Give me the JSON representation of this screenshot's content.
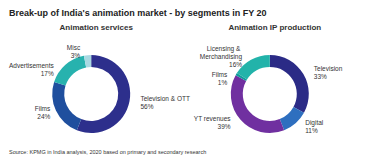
{
  "title": "Break-up of India's animation market - by segments in FY 20",
  "source": "Source: KPMG in India analysis, 2020 based on primary and secondary research",
  "chart_data": [
    {
      "type": "pie",
      "title": "Animation services",
      "categories": [
        "Television & OTT",
        "Films",
        "Advertisements",
        "Misc"
      ],
      "values": [
        56,
        24,
        17,
        3
      ],
      "value_labels": [
        "56%",
        "24%",
        "17%",
        "3%"
      ],
      "colors": [
        "#2d2f8c",
        "#1f4f9e",
        "#27b2ae",
        "#a9d9e2"
      ],
      "data_labels": true
    },
    {
      "type": "pie",
      "title": "Animation IP production",
      "categories": [
        "Television",
        "Digital",
        "YT revenues",
        "Films",
        "Licensing & Merchandising"
      ],
      "values": [
        33,
        11,
        39,
        1,
        16
      ],
      "value_labels": [
        "33%",
        "11%",
        "39%",
        "1%",
        "16%"
      ],
      "colors": [
        "#2b2b86",
        "#2e6fbf",
        "#7030a0",
        "#0f9c9a",
        "#22b3aa"
      ],
      "data_labels": true
    }
  ]
}
